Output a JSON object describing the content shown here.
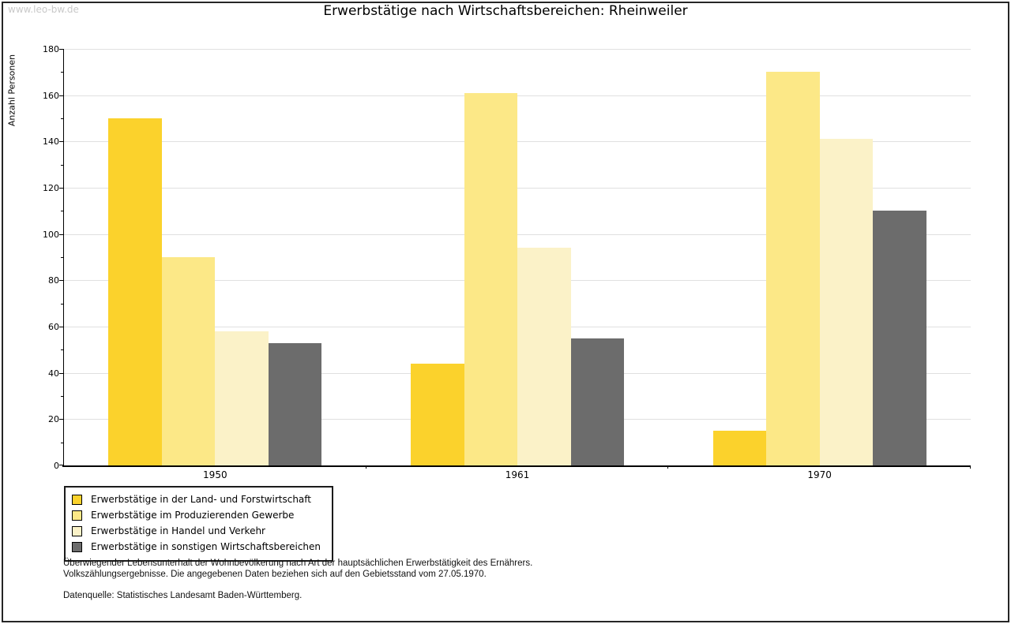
{
  "watermark": "www.leo-bw.de",
  "chart_data": {
    "type": "bar",
    "title": "Erwerbstätige nach Wirtschaftsbereichen: Rheinweiler",
    "xlabel": "",
    "ylabel": "Anzahl Personen",
    "categories": [
      "1950",
      "1961",
      "1970"
    ],
    "series": [
      {
        "name": "Erwerbstätige in der Land- und Forstwirtschaft",
        "color": "#FBD22C",
        "values": [
          150,
          44,
          15
        ]
      },
      {
        "name": "Erwerbstätige im Produzierenden Gewerbe",
        "color": "#FCE887",
        "values": [
          90,
          161,
          170
        ]
      },
      {
        "name": "Erwerbstätige in Handel und Verkehr",
        "color": "#FBF2C8",
        "values": [
          58,
          94,
          141
        ]
      },
      {
        "name": "Erwerbstätige in sonstigen Wirtschaftsbereichen",
        "color": "#6C6C6C",
        "values": [
          53,
          55,
          110
        ]
      }
    ],
    "ylim": [
      0,
      180
    ],
    "y_ticks": [
      0,
      20,
      40,
      60,
      80,
      100,
      120,
      140,
      160,
      180
    ],
    "y_minor_step": 10,
    "grid": "horizontal-major",
    "legend_position": "bottom-left"
  },
  "footer": {
    "line1": "Überwiegender Lebensunterhalt der Wohnbevölkerung nach Art der hauptsächlichen Erwerbstätigkeit des Ernährers.",
    "line2": "Volkszählungsergebnisse. Die angegebenen Daten beziehen sich auf den Gebietsstand vom 27.05.1970.",
    "source": "Datenquelle: Statistisches Landesamt Baden-Württemberg."
  },
  "colors": {
    "grid": "#E0E0E0",
    "axis": "#000000",
    "page_border": "#262626",
    "watermark": "#C9C9C9"
  }
}
